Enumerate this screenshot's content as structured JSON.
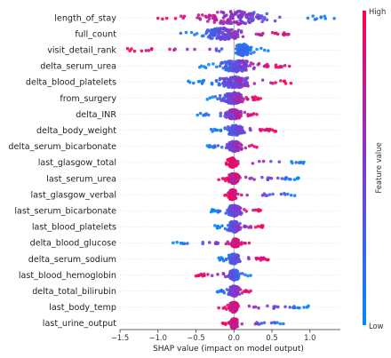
{
  "chart_data": {
    "type": "scatter",
    "subtype": "shap-beeswarm-summary",
    "xlabel": "SHAP value (impact on model output)",
    "xlim": [
      -1.5,
      1.4
    ],
    "xticks": [
      -1.5,
      -1.0,
      -0.5,
      0.0,
      0.5,
      1.0
    ],
    "xtick_labels": [
      "−1.5",
      "−1.0",
      "−0.5",
      "0.0",
      "0.5",
      "1.0"
    ],
    "zero_line": 0.0,
    "colorbar": {
      "label": "Feature value",
      "high": "High",
      "low": "Low",
      "colors": [
        "#008bfb",
        "#7b3bd5",
        "#ff0052"
      ]
    },
    "features": [
      {
        "name": "length_of_stay",
        "min": -1.0,
        "max": 1.32,
        "mean": 0.03,
        "spread": 0.5,
        "height": 1.0,
        "lowSide": "right"
      },
      {
        "name": "full_count",
        "min": -0.7,
        "max": 0.72,
        "mean": -0.15,
        "spread": 0.3,
        "height": 0.85,
        "lowSide": "left"
      },
      {
        "name": "visit_detail_rank",
        "min": -1.4,
        "max": 0.45,
        "mean": 0.12,
        "spread": 0.12,
        "height": 0.85,
        "lowSide": "right"
      },
      {
        "name": "delta_serum_urea",
        "min": -0.45,
        "max": 0.73,
        "mean": 0.05,
        "spread": 0.25,
        "height": 0.85,
        "lowSide": "left"
      },
      {
        "name": "delta_blood_platelets",
        "min": -0.6,
        "max": 0.75,
        "mean": 0.02,
        "spread": 0.25,
        "height": 0.85,
        "lowSide": "left"
      },
      {
        "name": "from_surgery",
        "min": -0.35,
        "max": 0.35,
        "mean": 0.0,
        "spread": 0.15,
        "height": 0.85,
        "lowSide": "left"
      },
      {
        "name": "delta_INR",
        "min": -0.48,
        "max": 0.3,
        "mean": 0.0,
        "spread": 0.12,
        "height": 0.7,
        "lowSide": "left"
      },
      {
        "name": "delta_body_weight",
        "min": -0.3,
        "max": 0.55,
        "mean": 0.02,
        "spread": 0.12,
        "height": 0.75,
        "lowSide": "left"
      },
      {
        "name": "delta_serum_bicarbonate",
        "min": -0.35,
        "max": 0.3,
        "mean": 0.0,
        "spread": 0.1,
        "height": 0.75,
        "lowSide": "left"
      },
      {
        "name": "last_glasgow_total",
        "min": -0.1,
        "max": 0.92,
        "mean": -0.02,
        "spread": 0.05,
        "height": 0.7,
        "lowSide": "right"
      },
      {
        "name": "last_serum_urea",
        "min": -0.2,
        "max": 0.85,
        "mean": 0.0,
        "spread": 0.08,
        "height": 0.75,
        "lowSide": "right"
      },
      {
        "name": "last_glasgow_verbal",
        "min": -0.12,
        "max": 0.8,
        "mean": -0.02,
        "spread": 0.05,
        "height": 0.75,
        "lowSide": "right"
      },
      {
        "name": "last_serum_bicarbonate",
        "min": -0.3,
        "max": 0.35,
        "mean": 0.0,
        "spread": 0.1,
        "height": 0.8,
        "lowSide": "left"
      },
      {
        "name": "last_blood_platelets",
        "min": -0.25,
        "max": 0.38,
        "mean": 0.0,
        "spread": 0.08,
        "height": 0.8,
        "lowSide": "left"
      },
      {
        "name": "delta_blood_glucose",
        "min": -0.8,
        "max": 0.2,
        "mean": 0.02,
        "spread": 0.05,
        "height": 0.6,
        "lowSide": "left"
      },
      {
        "name": "delta_serum_sodium",
        "min": -0.2,
        "max": 0.45,
        "mean": 0.0,
        "spread": 0.08,
        "height": 0.75,
        "lowSide": "left"
      },
      {
        "name": "last_blood_hemoglobin",
        "min": -0.5,
        "max": 0.22,
        "mean": 0.0,
        "spread": 0.08,
        "height": 0.75,
        "lowSide": "right"
      },
      {
        "name": "delta_total_bilirubin",
        "min": -0.22,
        "max": 0.22,
        "mean": 0.0,
        "spread": 0.07,
        "height": 0.75,
        "lowSide": "left"
      },
      {
        "name": "last_body_temp",
        "min": -0.2,
        "max": 0.98,
        "mean": 0.0,
        "spread": 0.06,
        "height": 0.75,
        "lowSide": "right"
      },
      {
        "name": "last_urine_output",
        "min": -0.15,
        "max": 0.65,
        "mean": 0.0,
        "spread": 0.05,
        "height": 0.7,
        "lowSide": "right"
      }
    ]
  }
}
